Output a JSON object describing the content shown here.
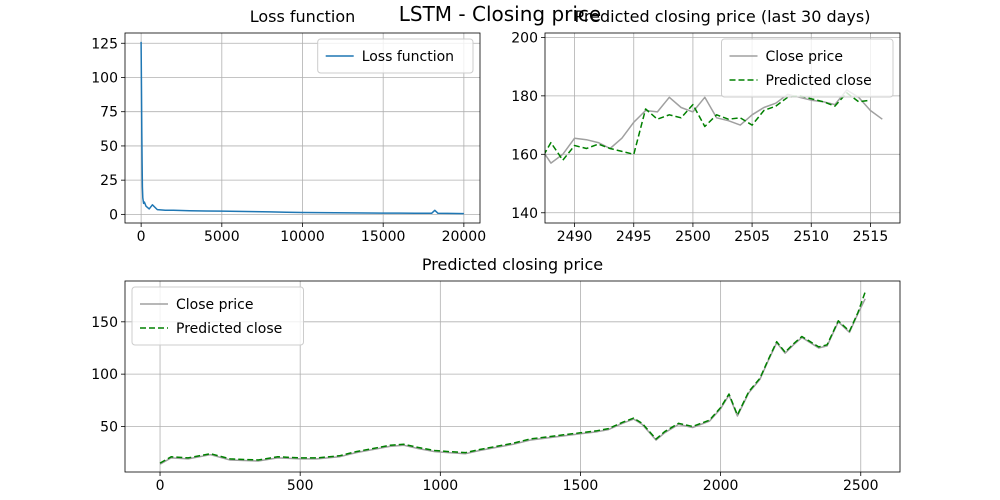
{
  "suptitle": "LSTM - Closing price",
  "colors": {
    "loss": "#1f77b4",
    "close": "#a0a0a0",
    "predicted": "#008000",
    "grid": "#b0b0b0"
  },
  "chart_data": [
    {
      "type": "line",
      "title": "Loss function",
      "xlabel": "",
      "ylabel": "",
      "xlim": [
        -1000,
        21000
      ],
      "ylim": [
        -6.3,
        132.5
      ],
      "xticks": [
        0,
        5000,
        10000,
        15000,
        20000
      ],
      "yticks": [
        0,
        25,
        50,
        75,
        100,
        125
      ],
      "grid": true,
      "legend": "upper right",
      "series": [
        {
          "name": "Loss function",
          "x": [
            0,
            20,
            40,
            60,
            80,
            100,
            150,
            200,
            300,
            500,
            700,
            1000,
            1500,
            2000,
            3000,
            4000,
            5000,
            6000,
            7000,
            8000,
            9000,
            10000,
            11000,
            12000,
            13000,
            14000,
            15000,
            16000,
            17000,
            18000,
            18200,
            18400,
            19000,
            20000
          ],
          "y": [
            126,
            90,
            60,
            38,
            20,
            12,
            8,
            9,
            6,
            4,
            7,
            3.5,
            3,
            3,
            2.7,
            2.5,
            2.4,
            2.2,
            2,
            1.8,
            1.6,
            1.4,
            1.3,
            1.2,
            1.1,
            1,
            0.9,
            0.9,
            0.8,
            0.8,
            3,
            0.8,
            0.7,
            0.6
          ]
        }
      ]
    },
    {
      "type": "line",
      "title": "Predicted closing price (last 30 days)",
      "xlabel": "",
      "ylabel": "",
      "xlim": [
        2487.5,
        2517.5
      ],
      "ylim": [
        136.5,
        201.5
      ],
      "xticks": [
        2490,
        2495,
        2500,
        2505,
        2510,
        2515
      ],
      "yticks": [
        140,
        160,
        180,
        200
      ],
      "grid": true,
      "legend": "upper right",
      "series": [
        {
          "name": "Close price",
          "x": [
            2487,
            2488,
            2489,
            2490,
            2491,
            2492,
            2493,
            2494,
            2495,
            2496,
            2497,
            2498,
            2499,
            2500,
            2501,
            2502,
            2503,
            2504,
            2505,
            2506,
            2507,
            2508,
            2509,
            2510,
            2511,
            2512,
            2513,
            2514,
            2515,
            2516
          ],
          "y": [
            163,
            157,
            160,
            165.5,
            165,
            164,
            162,
            165.5,
            171,
            175,
            174.5,
            179.5,
            176,
            174.5,
            179.5,
            172.5,
            171.5,
            170,
            173.5,
            176,
            177.5,
            180.5,
            179.5,
            178.5,
            178,
            177,
            182,
            179.5,
            175,
            172
          ]
        },
        {
          "name": "Predicted close",
          "x": [
            2487,
            2488,
            2489,
            2490,
            2491,
            2492,
            2493,
            2494,
            2495,
            2496,
            2497,
            2498,
            2499,
            2500,
            2501,
            2502,
            2503,
            2504,
            2505,
            2506,
            2507,
            2508,
            2509,
            2510,
            2511,
            2512,
            2513,
            2514,
            2515
          ],
          "y": [
            157,
            164,
            158,
            163,
            162,
            163.5,
            162,
            161,
            160,
            175.5,
            172,
            173.5,
            172.5,
            177,
            169.5,
            173.5,
            172,
            172.5,
            170,
            175,
            176.5,
            179.5,
            180,
            179,
            178,
            176.5,
            181,
            178,
            178.5
          ]
        }
      ]
    },
    {
      "type": "line",
      "title": "Predicted closing price",
      "xlabel": "",
      "ylabel": "",
      "xlim": [
        -125,
        2640
      ],
      "ylim": [
        6.5,
        189
      ],
      "xticks": [
        0,
        500,
        1000,
        1500,
        2000,
        2500
      ],
      "yticks": [
        50,
        100,
        150
      ],
      "grid": true,
      "legend": "upper left",
      "series": [
        {
          "name": "Close price",
          "x": [
            0,
            40,
            100,
            180,
            250,
            350,
            420,
            500,
            560,
            640,
            700,
            760,
            820,
            870,
            920,
            980,
            1030,
            1090,
            1140,
            1200,
            1260,
            1320,
            1380,
            1440,
            1500,
            1560,
            1600,
            1650,
            1690,
            1720,
            1750,
            1770,
            1800,
            1850,
            1900,
            1960,
            2000,
            2030,
            2060,
            2100,
            2140,
            2170,
            2200,
            2230,
            2260,
            2290,
            2320,
            2350,
            2380,
            2420,
            2460,
            2490,
            2516
          ],
          "y": [
            14,
            20,
            19,
            23,
            18,
            17,
            20,
            19,
            19,
            21,
            25,
            28,
            31,
            32,
            29,
            26,
            25,
            24,
            27,
            30,
            33,
            37,
            39,
            41,
            43,
            45,
            47,
            53,
            57,
            52,
            43,
            37,
            44,
            52,
            49,
            55,
            67,
            80,
            60,
            82,
            95,
            113,
            130,
            120,
            128,
            135,
            130,
            125,
            127,
            150,
            140,
            158,
            172
          ]
        },
        {
          "name": "Predicted close",
          "x": [
            0,
            40,
            100,
            180,
            250,
            350,
            420,
            500,
            560,
            640,
            700,
            760,
            820,
            870,
            920,
            980,
            1030,
            1090,
            1140,
            1200,
            1260,
            1320,
            1380,
            1440,
            1500,
            1560,
            1600,
            1650,
            1690,
            1720,
            1750,
            1770,
            1800,
            1850,
            1900,
            1960,
            2000,
            2030,
            2060,
            2100,
            2140,
            2170,
            2200,
            2230,
            2260,
            2290,
            2320,
            2350,
            2380,
            2420,
            2460,
            2490,
            2515
          ],
          "y": [
            15,
            21,
            20,
            24,
            19,
            18,
            21,
            20,
            20,
            22,
            26,
            29,
            32,
            33,
            30,
            27,
            26,
            25,
            28,
            31,
            34,
            38,
            40,
            42,
            44,
            46,
            48,
            54,
            58,
            53,
            44,
            38,
            45,
            53,
            50,
            56,
            68,
            81,
            61,
            83,
            96,
            114,
            131,
            121,
            129,
            136,
            131,
            126,
            128,
            151,
            141,
            159,
            178
          ]
        }
      ]
    }
  ]
}
